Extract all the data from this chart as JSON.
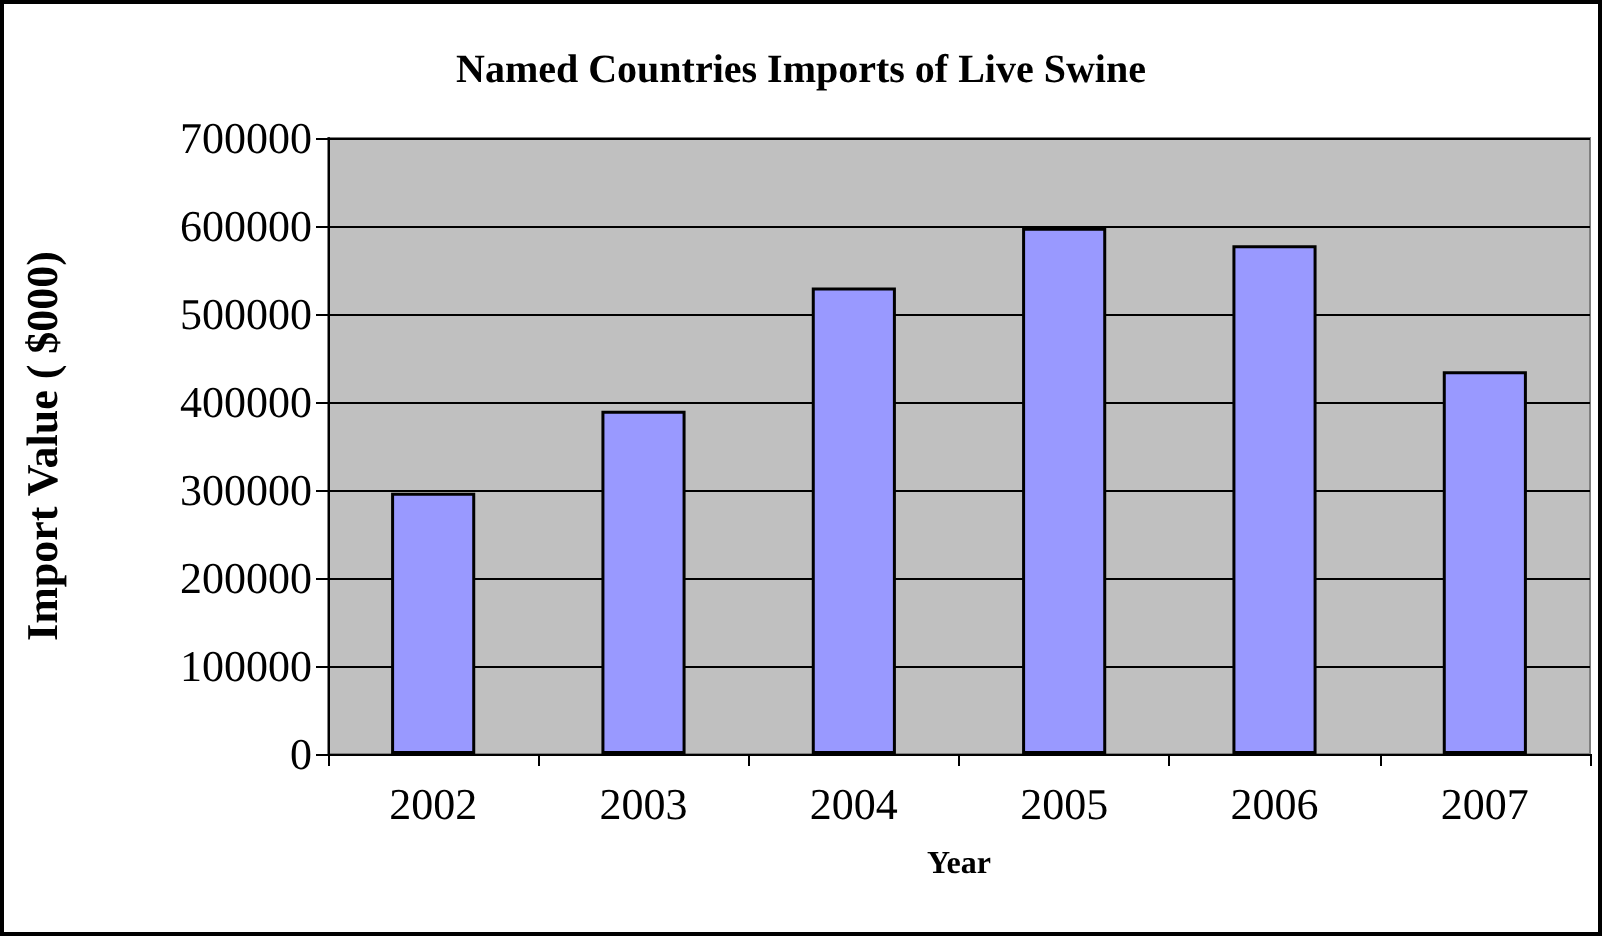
{
  "chart_data": {
    "type": "bar",
    "title": "Named Countries Imports of Live Swine",
    "xlabel": "Year",
    "ylabel": "Import Value ( $000)",
    "categories": [
      "2002",
      "2003",
      "2004",
      "2005",
      "2006",
      "2007"
    ],
    "values": [
      297000,
      390000,
      530000,
      598000,
      578000,
      435000
    ],
    "color": "#9999ff",
    "ylim": [
      0,
      700000
    ],
    "yticks": [
      0,
      100000,
      200000,
      300000,
      400000,
      500000,
      600000,
      700000
    ],
    "grid": "y"
  }
}
